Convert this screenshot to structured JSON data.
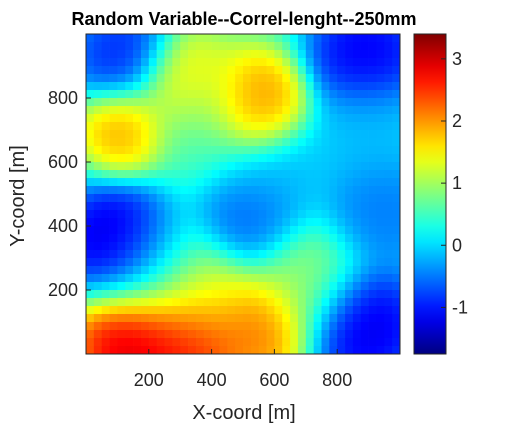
{
  "chart_data": {
    "type": "heatmap",
    "title": "Random Variable--Correl-lenght--250mm",
    "xlabel": "X-coord [m]",
    "ylabel": "Y-coord [m]",
    "xlim": [
      0,
      1000
    ],
    "ylim": [
      0,
      1000
    ],
    "xticks": [
      200,
      400,
      600,
      800
    ],
    "yticks": [
      200,
      400,
      600,
      800
    ],
    "clim": [
      -1.75,
      3.4
    ],
    "colorbar_ticks": [
      -1,
      0,
      1,
      2,
      3
    ],
    "colormap": "jet",
    "grid_resolution": [
      40,
      40
    ],
    "value_field": [
      {
        "x": 110,
        "y": 340,
        "value": -1.75,
        "extent": 100
      },
      {
        "x": 520,
        "y": 420,
        "value": -0.75,
        "extent": 90
      },
      {
        "x": 380,
        "y": 730,
        "value": 0.6,
        "extent": 110
      },
      {
        "x": 240,
        "y": 260,
        "value": 0.4,
        "extent": 110
      },
      {
        "x": 120,
        "y": 930,
        "value": -1.1,
        "extent": 85
      },
      {
        "x": 890,
        "y": 930,
        "value": -1.4,
        "extent": 95
      },
      {
        "x": 600,
        "y": 580,
        "value": -0.2,
        "extent": 100
      },
      {
        "x": 940,
        "y": 450,
        "value": -0.6,
        "extent": 100
      },
      {
        "x": 880,
        "y": 90,
        "value": -1.5,
        "extent": 100
      },
      {
        "x": 120,
        "y": 700,
        "value": 2.1,
        "extent": 75
      },
      {
        "x": 320,
        "y": 850,
        "value": 1.8,
        "extent": 85
      },
      {
        "x": 530,
        "y": 790,
        "value": 2.3,
        "extent": 85
      },
      {
        "x": 560,
        "y": 760,
        "value": 2.1,
        "extent": 65
      },
      {
        "x": 380,
        "y": 180,
        "value": 1.5,
        "extent": 90
      },
      {
        "x": 700,
        "y": 230,
        "value": 1.0,
        "extent": 100
      },
      {
        "x": 150,
        "y": 40,
        "value": 3.4,
        "extent": 100
      },
      {
        "x": 330,
        "y": 50,
        "value": 3.0,
        "extent": 95
      },
      {
        "x": 550,
        "y": 80,
        "value": 2.4,
        "extent": 90
      },
      {
        "x": 900,
        "y": 700,
        "value": -0.2,
        "extent": 100
      }
    ]
  }
}
